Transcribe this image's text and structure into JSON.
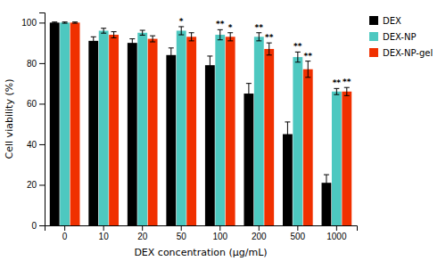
{
  "chart_data": {
    "type": "bar",
    "xlabel": "DEX concentration (μg/mL)",
    "ylabel": "Cell viability (%)",
    "categories": [
      "0",
      "10",
      "20",
      "50",
      "100",
      "200",
      "500",
      "1000"
    ],
    "series": [
      {
        "name": "DEX",
        "color": "#000000",
        "values": [
          100,
          91,
          90,
          84,
          79,
          65,
          45,
          21
        ],
        "errors": [
          0.3,
          2.0,
          2.0,
          3.5,
          4.5,
          5.0,
          6.0,
          4.0
        ]
      },
      {
        "name": "DEX-NP",
        "color": "#4DC8C0",
        "values": [
          100,
          96,
          95,
          96,
          94,
          93,
          83,
          66
        ],
        "errors": [
          0.3,
          1.2,
          1.2,
          2.0,
          2.5,
          2.0,
          2.5,
          1.5
        ],
        "annotations": [
          null,
          null,
          null,
          "*",
          "**",
          "**",
          "**",
          "**"
        ]
      },
      {
        "name": "DEX-NP-gel",
        "color": "#F03000",
        "values": [
          100,
          94,
          92,
          93,
          93,
          87,
          77,
          66
        ],
        "errors": [
          0.3,
          1.5,
          1.5,
          2.0,
          2.0,
          3.0,
          4.0,
          2.0
        ],
        "annotations": [
          null,
          null,
          null,
          null,
          "*",
          "**",
          "**",
          "**"
        ]
      }
    ],
    "ylim": [
      0,
      105
    ],
    "yticks": [
      0,
      20,
      40,
      60,
      80,
      100
    ],
    "grid": false,
    "legend": "right"
  }
}
